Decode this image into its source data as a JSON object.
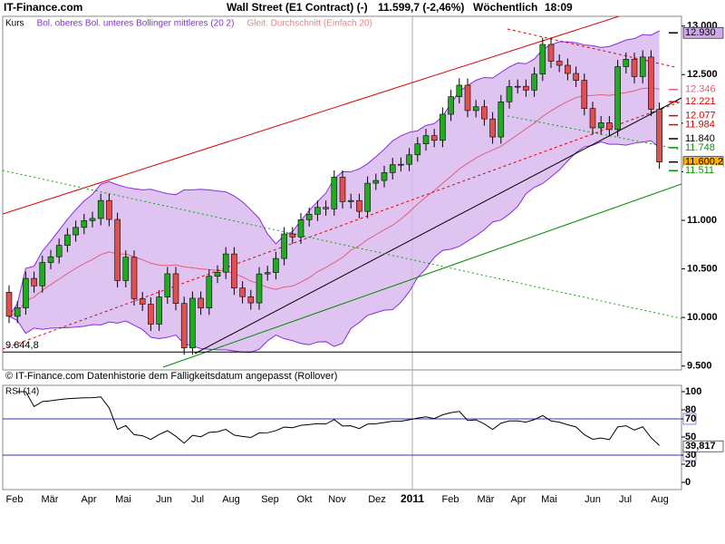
{
  "header": {
    "site": "IT-Finance.com",
    "title": "Wall Street (E1 Contract) (-)",
    "quote": "11.599,7 (-2,46%)",
    "period": "Wöchentlich",
    "time": "18:09"
  },
  "chart_data": {
    "type": "candlestick",
    "legend": [
      "Kurs",
      "Bol. oberes Bol. unteres Bollinger mittleres (20 2)",
      "Gleit. Durchschnitt (Einfach 20)"
    ],
    "legend_colors": [
      "#000000",
      "#8a2be2",
      "#f08080"
    ],
    "footer": "© IT-Finance.com  Datenhistorie dem Fälligkeitsdatum angepasst (Rollover)",
    "months": [
      "Feb",
      "Mär",
      "Apr",
      "Mai",
      "Jun",
      "Jul",
      "Aug",
      "Sep",
      "Okt",
      "Nov",
      "Dez",
      "2011",
      "Feb",
      "Mär",
      "Apr",
      "Mai",
      "Jun",
      "Jul",
      "Aug"
    ],
    "up_color": "#22aa22",
    "down_color": "#e05050",
    "band_color": "#d9b8ef",
    "band_line": "#8a2be2",
    "ma_color": "#e0607a",
    "open": [
      10260,
      10012,
      10099,
      10402,
      10325,
      10566,
      10625,
      10742,
      10850,
      10927,
      10997,
      11019,
      11204,
      11009,
      10380,
      10620,
      10193,
      10137,
      9931,
      10211,
      10450,
      10144,
      9686,
      10198,
      10097,
      10424,
      10466,
      10654,
      10303,
      10214,
      10150,
      10448,
      10462,
      10607,
      10860,
      10829,
      11006,
      11062,
      11133,
      11118,
      11444,
      11192,
      11204,
      11092,
      11382,
      11410,
      11491,
      11573,
      11577,
      11674,
      11787,
      11871,
      11823,
      12092,
      12273,
      12391,
      12130,
      12169,
      12044,
      11858,
      12220,
      12376,
      12380,
      12341,
      12505,
      12810,
      12638,
      12596,
      12512,
      12441,
      12151,
      11952,
      12004,
      11934,
      12582,
      12657,
      12480,
      12681,
      12143
    ],
    "high": [
      10330,
      10169,
      10472,
      10472,
      10636,
      10695,
      10812,
      10920,
      10997,
      11067,
      11089,
      11274,
      11274,
      11079,
      10690,
      10690,
      10263,
      10207,
      10281,
      10520,
      10520,
      10214,
      10268,
      10268,
      10494,
      10536,
      10724,
      10724,
      10373,
      10284,
      10518,
      10532,
      10677,
      10930,
      10930,
      11076,
      11132,
      11203,
      11203,
      11514,
      11514,
      11274,
      11274,
      11452,
      11480,
      11561,
      11643,
      11647,
      11744,
      11857,
      11941,
      11941,
      12162,
      12343,
      12461,
      12461,
      12239,
      12239,
      12114,
      12290,
      12446,
      12450,
      12450,
      12575,
      12880,
      12880,
      12708,
      12666,
      12582,
      12511,
      12221,
      12074,
      12074,
      12652,
      12727,
      12727,
      12751,
      12751,
      12213
    ],
    "low": [
      9942,
      9942,
      10029,
      10255,
      10255,
      10496,
      10555,
      10672,
      10780,
      10857,
      10927,
      10949,
      10939,
      10310,
      10310,
      10123,
      10067,
      9861,
      9861,
      10141,
      10074,
      9616,
      9616,
      10027,
      10027,
      10354,
      10396,
      10233,
      10144,
      10080,
      10080,
      10378,
      10392,
      10537,
      10759,
      10759,
      10936,
      10992,
      11048,
      11048,
      11122,
      11122,
      11022,
      11022,
      11312,
      11340,
      11421,
      11503,
      11507,
      11604,
      11717,
      11753,
      11753,
      12022,
      12203,
      12060,
      12060,
      11974,
      11788,
      11788,
      12150,
      12306,
      12271,
      12271,
      12435,
      12568,
      12526,
      12442,
      12371,
      12081,
      11882,
      11882,
      11864,
      11864,
      12512,
      12410,
      12410,
      12073,
      11530
    ],
    "close": [
      10012,
      10099,
      10402,
      10325,
      10566,
      10625,
      10742,
      10850,
      10927,
      10997,
      11019,
      11204,
      11009,
      10380,
      10620,
      10193,
      10137,
      9931,
      10211,
      10450,
      10144,
      9686,
      10198,
      10097,
      10424,
      10466,
      10654,
      10303,
      10214,
      10150,
      10448,
      10462,
      10607,
      10860,
      10829,
      11006,
      11062,
      11133,
      11118,
      11444,
      11192,
      11204,
      11092,
      11382,
      11410,
      11491,
      11573,
      11577,
      11674,
      11787,
      11871,
      11823,
      12092,
      12273,
      12391,
      12130,
      12169,
      12044,
      11858,
      12220,
      12376,
      12380,
      12341,
      12505,
      12810,
      12638,
      12596,
      12512,
      12441,
      12151,
      11952,
      12004,
      11934,
      12582,
      12657,
      12480,
      12681,
      12143,
      11600
    ],
    "ylim": [
      9460,
      13100
    ],
    "yticks": [
      {
        "value": 9500,
        "label": "9.500"
      },
      {
        "value": 10000,
        "label": "10.000"
      },
      {
        "value": 10500,
        "label": "10.500"
      },
      {
        "value": 11000,
        "label": "11.000"
      },
      {
        "value": 11500,
        "label": "11.500"
      },
      {
        "value": 12000,
        "label": "12.000"
      },
      {
        "value": 12500,
        "label": "12.500"
      },
      {
        "value": 13000,
        "label": "13.000"
      }
    ],
    "price_labels": [
      {
        "value": 12930,
        "label": "12.930",
        "color": "#000000",
        "fill": "#cfa8ec"
      },
      {
        "value": 12346,
        "label": "12.346",
        "color": "#e0607a",
        "fill": "#ffffff"
      },
      {
        "value": 12221,
        "label": "12.221",
        "color": "#e00000",
        "fill": "#ffffff"
      },
      {
        "value": 12077,
        "label": "12.077",
        "color": "#e00000",
        "fill": "#ffffff"
      },
      {
        "value": 11984,
        "label": "11.984",
        "color": "#e00000",
        "fill": "#ffffff"
      },
      {
        "value": 11840,
        "label": "11.840",
        "color": "#000000",
        "fill": "#ffffff"
      },
      {
        "value": 11748,
        "label": "11.748",
        "color": "#009900",
        "fill": "#ffffff"
      },
      {
        "value": 11600.2,
        "label": "11.600,2",
        "color": "#000000",
        "fill": "#ffb000"
      },
      {
        "value": 11511,
        "label": "11.511",
        "color": "#009900",
        "fill": "#ffffff"
      }
    ],
    "low_mark": {
      "value": 9644.8,
      "label": "9.644,8"
    }
  },
  "rsi_panel": {
    "title": "RSI (14)",
    "ylim": [
      -8,
      107
    ],
    "yticks": [
      0,
      20,
      30,
      50,
      70,
      80,
      100
    ],
    "levels": [
      30,
      70
    ],
    "level_color": "#3333bb",
    "last": {
      "value": 39.817,
      "label": "39,817"
    }
  }
}
